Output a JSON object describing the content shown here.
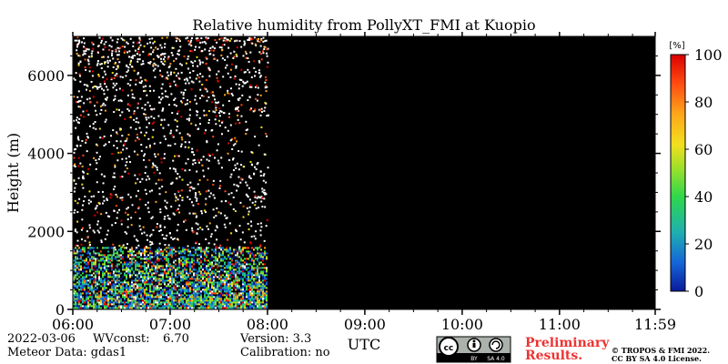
{
  "chart_data": {
    "type": "heatmap",
    "title": "Relative humidity from PollyXT_FMI at Kuopio",
    "xlabel": "UTC",
    "ylabel": "Height (m)",
    "x_ticks": [
      "06:00",
      "07:00",
      "08:00",
      "09:00",
      "10:00",
      "11:00",
      "11:59"
    ],
    "y_ticks": [
      0,
      2000,
      4000,
      6000
    ],
    "ylim": [
      0,
      7000
    ],
    "xlim_hours": [
      6.0,
      11.983
    ],
    "data_coverage_hours": [
      6.0,
      8.0
    ],
    "colorbar": {
      "unit": "[%]",
      "ticks": [
        0,
        20,
        40,
        60,
        80,
        100
      ],
      "range": [
        0,
        100
      ],
      "colors": [
        "#0a1a9a",
        "#1565d8",
        "#1fb0b0",
        "#2fd84a",
        "#9ee02a",
        "#f2e01e",
        "#ffa51a",
        "#ff4a12",
        "#d90000"
      ]
    },
    "background_color": "#000000",
    "description_levels": {
      "dense_layer_top_m": 1600,
      "scattered_to_m": 7000
    }
  },
  "footer": {
    "date": "2022-03-06",
    "wvconst_label": "WVconst:",
    "wvconst_value": "6.70",
    "meteor": "Meteor Data: gdas1",
    "version": "Version: 3.3",
    "calibration": "Calibration: no",
    "license_by": "BY",
    "license_sa": "SA 4.0",
    "preliminary_1": "Preliminary",
    "preliminary_2": "Results.",
    "copyright_1": "© TROPOS & FMI 2022.",
    "copyright_2": "CC BY SA 4.0 License."
  }
}
